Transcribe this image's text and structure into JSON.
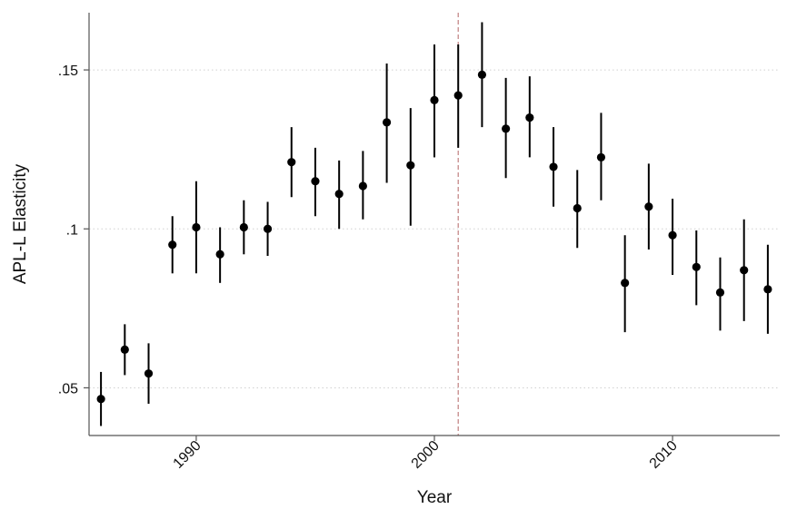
{
  "chart_data": {
    "type": "scatter",
    "xlabel": "Year",
    "ylabel": "APL-L Elasticity",
    "xlim": [
      1985.5,
      2014.5
    ],
    "ylim": [
      0.035,
      0.168
    ],
    "x_ticks": [
      1990,
      2000,
      2010
    ],
    "x_tick_labels": [
      "1990",
      "2000",
      "2010"
    ],
    "y_ticks": [
      0.05,
      0.1,
      0.15
    ],
    "y_tick_labels": [
      ".05",
      ".1",
      ".15"
    ],
    "grid": "horizontal-dotted",
    "reference_line_x": 2001,
    "colors": {
      "points": "#000000",
      "reference_line": "#c08080",
      "grid": "#d0d0d0",
      "axis": "#555555"
    },
    "points": [
      {
        "x": 1986,
        "y": 0.0465,
        "lo": 0.038,
        "hi": 0.055
      },
      {
        "x": 1987,
        "y": 0.062,
        "lo": 0.054,
        "hi": 0.07
      },
      {
        "x": 1988,
        "y": 0.0545,
        "lo": 0.045,
        "hi": 0.064
      },
      {
        "x": 1989,
        "y": 0.095,
        "lo": 0.086,
        "hi": 0.104
      },
      {
        "x": 1990,
        "y": 0.1005,
        "lo": 0.086,
        "hi": 0.115
      },
      {
        "x": 1991,
        "y": 0.092,
        "lo": 0.083,
        "hi": 0.1005
      },
      {
        "x": 1992,
        "y": 0.1005,
        "lo": 0.092,
        "hi": 0.109
      },
      {
        "x": 1993,
        "y": 0.1,
        "lo": 0.0915,
        "hi": 0.1085
      },
      {
        "x": 1994,
        "y": 0.121,
        "lo": 0.11,
        "hi": 0.132
      },
      {
        "x": 1995,
        "y": 0.115,
        "lo": 0.104,
        "hi": 0.1255
      },
      {
        "x": 1996,
        "y": 0.111,
        "lo": 0.1,
        "hi": 0.1215
      },
      {
        "x": 1997,
        "y": 0.1135,
        "lo": 0.103,
        "hi": 0.1245
      },
      {
        "x": 1998,
        "y": 0.1335,
        "lo": 0.1145,
        "hi": 0.152
      },
      {
        "x": 1999,
        "y": 0.12,
        "lo": 0.101,
        "hi": 0.138
      },
      {
        "x": 2000,
        "y": 0.1405,
        "lo": 0.1225,
        "hi": 0.158
      },
      {
        "x": 2001,
        "y": 0.142,
        "lo": 0.1255,
        "hi": 0.158
      },
      {
        "x": 2002,
        "y": 0.1485,
        "lo": 0.132,
        "hi": 0.165
      },
      {
        "x": 2003,
        "y": 0.1315,
        "lo": 0.116,
        "hi": 0.1475
      },
      {
        "x": 2004,
        "y": 0.135,
        "lo": 0.1225,
        "hi": 0.148
      },
      {
        "x": 2005,
        "y": 0.1195,
        "lo": 0.107,
        "hi": 0.132
      },
      {
        "x": 2006,
        "y": 0.1065,
        "lo": 0.094,
        "hi": 0.1185
      },
      {
        "x": 2007,
        "y": 0.1225,
        "lo": 0.109,
        "hi": 0.1365
      },
      {
        "x": 2008,
        "y": 0.083,
        "lo": 0.0675,
        "hi": 0.098
      },
      {
        "x": 2009,
        "y": 0.107,
        "lo": 0.0935,
        "hi": 0.1205
      },
      {
        "x": 2010,
        "y": 0.098,
        "lo": 0.0855,
        "hi": 0.1095
      },
      {
        "x": 2011,
        "y": 0.088,
        "lo": 0.076,
        "hi": 0.0995
      },
      {
        "x": 2012,
        "y": 0.08,
        "lo": 0.068,
        "hi": 0.091
      },
      {
        "x": 2013,
        "y": 0.087,
        "lo": 0.071,
        "hi": 0.103
      },
      {
        "x": 2014,
        "y": 0.081,
        "lo": 0.067,
        "hi": 0.095
      }
    ]
  }
}
